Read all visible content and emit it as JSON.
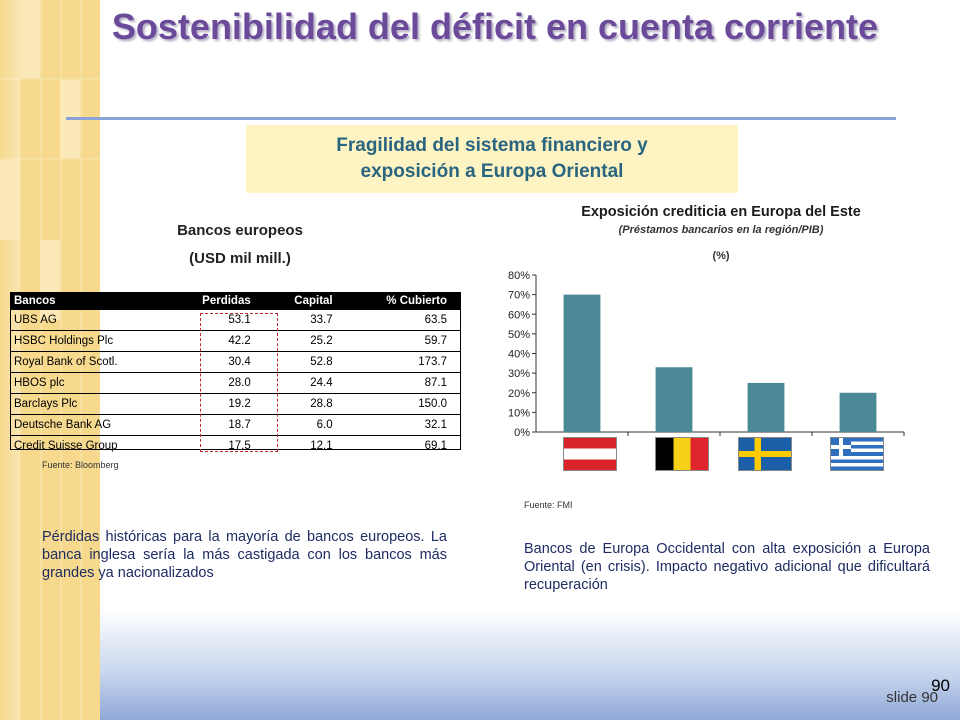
{
  "slide": {
    "title": "Sostenibilidad del déficit en cuenta corriente",
    "subtitle": "Fragilidad del sistema financiero y\nexposición a Europa Oriental",
    "slide_label": "slide 90",
    "page_number": "90"
  },
  "table": {
    "title": "Bancos europeos",
    "unit": "(USD mil mill.)",
    "headers": [
      "Bancos",
      "Perdidas",
      "Capital",
      "% Cubierto"
    ],
    "rows": [
      [
        "UBS AG",
        "53.1",
        "33.7",
        "63.5"
      ],
      [
        "HSBC Holdings Plc",
        "42.2",
        "25.2",
        "59.7"
      ],
      [
        "Royal Bank of Scotl.",
        "30.4",
        "52.8",
        "173.7"
      ],
      [
        "HBOS plc",
        "28.0",
        "24.4",
        "87.1"
      ],
      [
        "Barclays Plc",
        "19.2",
        "28.8",
        "150.0"
      ],
      [
        "Deutsche Bank AG",
        "18.7",
        "6.0",
        "32.1"
      ],
      [
        "Credit Suisse Group",
        "17.5",
        "12.1",
        "69.1"
      ]
    ],
    "source": "Fuente: Bloomberg",
    "highlight_color": "#c0282d"
  },
  "left_text": "Pérdidas históricas para la mayoría de bancos europeos. La banca inglesa sería la más castigada con los bancos más grandes ya nacionalizados",
  "right_text": "Bancos de Europa Occidental con alta exposición a Europa Oriental (en crisis). Impacto negativo adicional que dificultará recuperación",
  "chart_data": {
    "type": "bar",
    "title": "Exposición crediticia en Europa del Este",
    "subtitle": "(Préstamos bancarios en la región/PIB)",
    "unit": "(%)",
    "categories": [
      "Austria",
      "Bélgica",
      "Suecia",
      "Grecia"
    ],
    "category_display": "flags",
    "values": [
      70,
      33,
      25,
      20
    ],
    "ylim": [
      0,
      80
    ],
    "yticks": [
      "0%",
      "10%",
      "20%",
      "30%",
      "40%",
      "50%",
      "60%",
      "70%",
      "80%"
    ],
    "bar_color": "#4a8797",
    "grid": false,
    "source": "Fuente: FMI"
  }
}
